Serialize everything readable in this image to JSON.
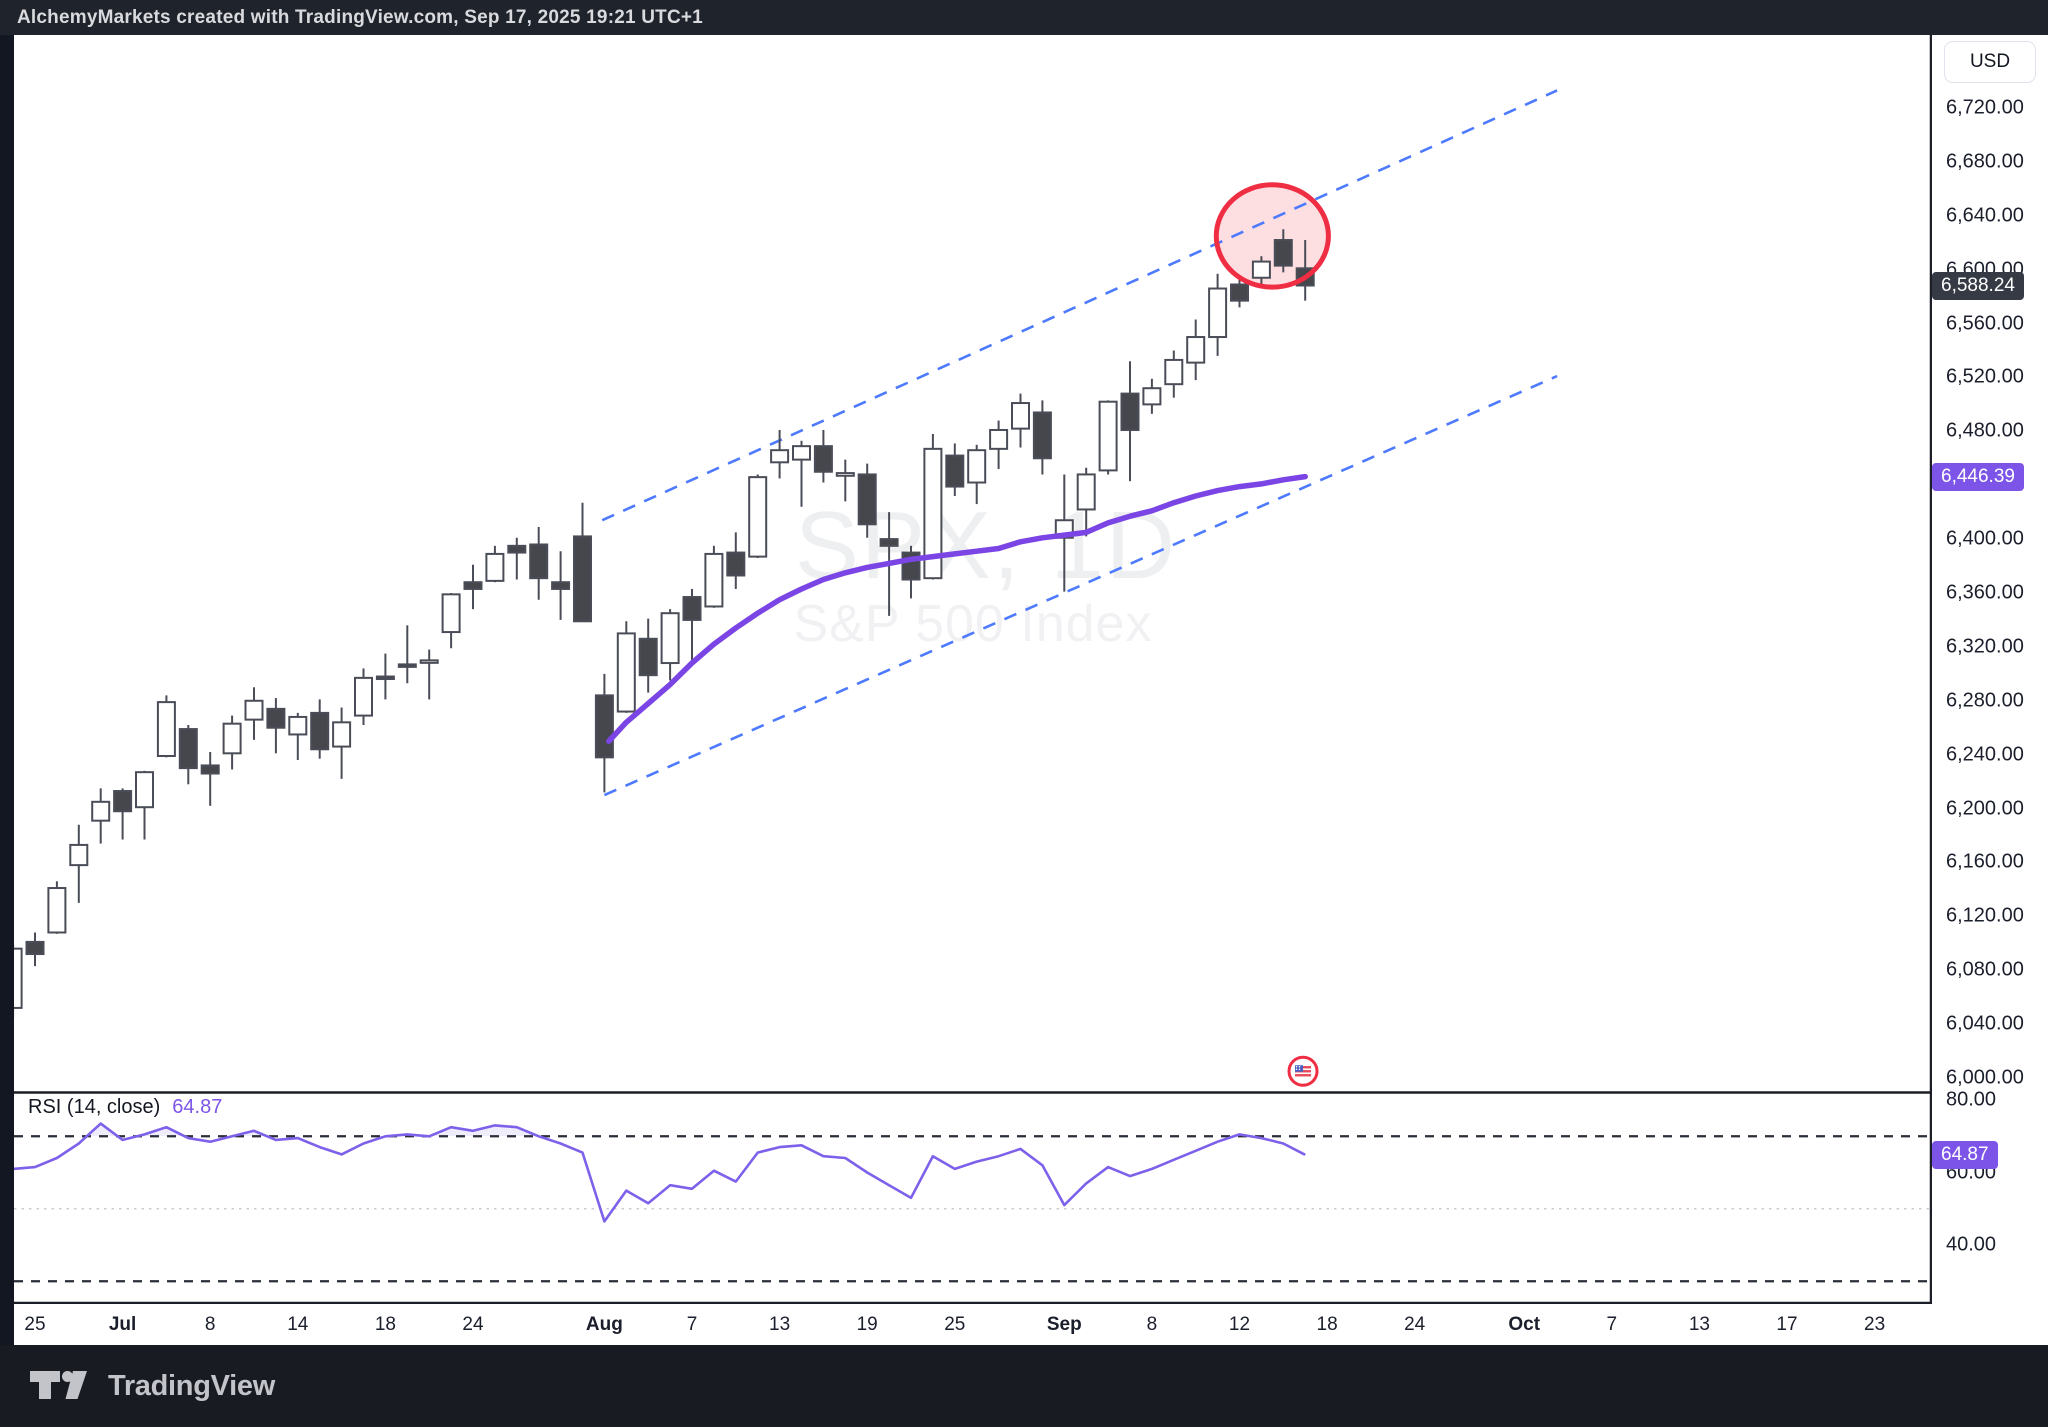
{
  "titlebar": {
    "text": "AlchemyMarkets created with TradingView.com, Sep 17, 2025 19:21 UTC+1"
  },
  "footer": {
    "brand": "TradingView"
  },
  "watermark": {
    "line1": "SPX, 1D",
    "line2": "S&P 500 Index"
  },
  "right_axis": {
    "currency": "USD",
    "price_labels": [
      {
        "price": 6720,
        "label": "6,720.00"
      },
      {
        "price": 6680,
        "label": "6,680.00"
      },
      {
        "price": 6640,
        "label": "6,640.00"
      },
      {
        "price": 6600,
        "label": "6,600.00"
      },
      {
        "price": 6560,
        "label": "6,560.00"
      },
      {
        "price": 6520,
        "label": "6,520.00"
      },
      {
        "price": 6480,
        "label": "6,480.00"
      },
      {
        "price": 6400,
        "label": "6,400.00"
      },
      {
        "price": 6360,
        "label": "6,360.00"
      },
      {
        "price": 6320,
        "label": "6,320.00"
      },
      {
        "price": 6280,
        "label": "6,280.00"
      },
      {
        "price": 6240,
        "label": "6,240.00"
      },
      {
        "price": 6200,
        "label": "6,200.00"
      },
      {
        "price": 6160,
        "label": "6,160.00"
      },
      {
        "price": 6120,
        "label": "6,120.00"
      },
      {
        "price": 6080,
        "label": "6,080.00"
      },
      {
        "price": 6040,
        "label": "6,040.00"
      },
      {
        "price": 6000,
        "label": "6,000.00"
      }
    ],
    "last_price_badge": {
      "label": "6,588.24",
      "price": 6588.24,
      "bg": "#363a45"
    },
    "ma_badge": {
      "label": "6,446.39",
      "price": 6446.39,
      "bg": "#7c55e8"
    },
    "rsi_badge": {
      "label": "64.87",
      "value": 64.87,
      "bg": "#7c55e8"
    },
    "rsi_labels": [
      {
        "value": 80,
        "label": "80.00"
      },
      {
        "value": 60,
        "label": "60.00"
      },
      {
        "value": 40,
        "label": "40.00"
      }
    ]
  },
  "rsi_panel": {
    "name": "RSI",
    "params": "(14, close)",
    "value_text": "64.87",
    "overbought": 70,
    "midline": 50,
    "oversold": 30
  },
  "time_axis": {
    "labels": [
      {
        "text": "25",
        "idx": 0,
        "bold": false
      },
      {
        "text": "Jul",
        "idx": 4,
        "bold": true
      },
      {
        "text": "8",
        "idx": 8,
        "bold": false
      },
      {
        "text": "14",
        "idx": 12,
        "bold": false
      },
      {
        "text": "18",
        "idx": 16,
        "bold": false
      },
      {
        "text": "24",
        "idx": 20,
        "bold": false
      },
      {
        "text": "Aug",
        "idx": 26,
        "bold": true
      },
      {
        "text": "7",
        "idx": 30,
        "bold": false
      },
      {
        "text": "13",
        "idx": 34,
        "bold": false
      },
      {
        "text": "19",
        "idx": 38,
        "bold": false
      },
      {
        "text": "25",
        "idx": 42,
        "bold": false
      },
      {
        "text": "Sep",
        "idx": 47,
        "bold": true
      },
      {
        "text": "8",
        "idx": 51,
        "bold": false
      },
      {
        "text": "12",
        "idx": 55,
        "bold": false
      },
      {
        "text": "18",
        "idx": 59,
        "bold": false
      },
      {
        "text": "24",
        "idx": 63,
        "bold": false
      },
      {
        "text": "Oct",
        "idx": 68,
        "bold": true
      },
      {
        "text": "7",
        "idx": 72,
        "bold": false
      },
      {
        "text": "13",
        "idx": 76,
        "bold": false
      },
      {
        "text": "17",
        "idx": 80,
        "bold": false
      },
      {
        "text": "23",
        "idx": 84,
        "bold": false
      }
    ]
  },
  "chart_data": {
    "type": "candlestick",
    "symbol": "SPX",
    "interval": "1D",
    "index_name": "S&P 500 Index",
    "last_close": 6588.24,
    "ma_value": 6446.39,
    "rsi_value": 64.87,
    "price_axis_range": [
      5990,
      6770
    ],
    "dates": [
      "Jun 24",
      "Jun 25",
      "Jun 26",
      "Jun 27",
      "Jun 30",
      "Jul 1",
      "Jul 2",
      "Jul 3",
      "Jul 7",
      "Jul 8",
      "Jul 9",
      "Jul 10",
      "Jul 11",
      "Jul 14",
      "Jul 15",
      "Jul 16",
      "Jul 17",
      "Jul 18",
      "Jul 21",
      "Jul 22",
      "Jul 23",
      "Jul 24",
      "Jul 25",
      "Jul 28",
      "Jul 29",
      "Jul 30",
      "Jul 31",
      "Aug 1",
      "Aug 4",
      "Aug 5",
      "Aug 6",
      "Aug 7",
      "Aug 8",
      "Aug 11",
      "Aug 12",
      "Aug 13",
      "Aug 14",
      "Aug 15",
      "Aug 18",
      "Aug 19",
      "Aug 20",
      "Aug 21",
      "Aug 22",
      "Aug 25",
      "Aug 26",
      "Aug 27",
      "Aug 28",
      "Aug 29",
      "Sep 2",
      "Sep 3",
      "Sep 4",
      "Sep 5",
      "Sep 8",
      "Sep 9",
      "Sep 10",
      "Sep 11",
      "Sep 12",
      "Sep 15",
      "Sep 16",
      "Sep 17"
    ],
    "ohlc": [
      [
        6052,
        6099,
        6045,
        6096
      ],
      [
        6101,
        6108,
        6083,
        6092
      ],
      [
        6108,
        6146,
        6107,
        6141
      ],
      [
        6158,
        6188,
        6130,
        6173
      ],
      [
        6191,
        6215,
        6174,
        6205
      ],
      [
        6213,
        6215,
        6177,
        6198
      ],
      [
        6201,
        6228,
        6177,
        6227
      ],
      [
        6239,
        6284,
        6238,
        6279
      ],
      [
        6259,
        6262,
        6218,
        6230
      ],
      [
        6232,
        6242,
        6202,
        6226
      ],
      [
        6241,
        6269,
        6229,
        6263
      ],
      [
        6266,
        6290,
        6251,
        6280
      ],
      [
        6274,
        6282,
        6241,
        6260
      ],
      [
        6255,
        6271,
        6236,
        6268
      ],
      [
        6271,
        6281,
        6237,
        6244
      ],
      [
        6246,
        6275,
        6222,
        6264
      ],
      [
        6269,
        6304,
        6262,
        6297
      ],
      [
        6298,
        6315,
        6281,
        6297
      ],
      [
        6307,
        6336,
        6293,
        6306
      ],
      [
        6310,
        6318,
        6281,
        6310
      ],
      [
        6331,
        6360,
        6319,
        6359
      ],
      [
        6368,
        6381,
        6348,
        6363
      ],
      [
        6369,
        6395,
        6368,
        6389
      ],
      [
        6395,
        6401,
        6370,
        6390
      ],
      [
        6396,
        6409,
        6355,
        6371
      ],
      [
        6368,
        6391,
        6340,
        6363
      ],
      [
        6402,
        6427,
        6343,
        6339
      ],
      [
        6284,
        6300,
        6212,
        6238
      ],
      [
        6272,
        6339,
        6271,
        6330
      ],
      [
        6326,
        6341,
        6286,
        6299
      ],
      [
        6308,
        6348,
        6295,
        6345
      ],
      [
        6357,
        6363,
        6306,
        6340
      ],
      [
        6350,
        6395,
        6349,
        6389
      ],
      [
        6390,
        6405,
        6363,
        6373
      ],
      [
        6387,
        6448,
        6386,
        6446
      ],
      [
        6457,
        6481,
        6445,
        6466
      ],
      [
        6459,
        6473,
        6424,
        6469
      ],
      [
        6469,
        6481,
        6442,
        6450
      ],
      [
        6447,
        6459,
        6428,
        6449
      ],
      [
        6448,
        6456,
        6401,
        6411
      ],
      [
        6400,
        6420,
        6343,
        6395
      ],
      [
        6390,
        6395,
        6356,
        6370
      ],
      [
        6371,
        6478,
        6370,
        6467
      ],
      [
        6462,
        6471,
        6432,
        6439
      ],
      [
        6442,
        6470,
        6426,
        6466
      ],
      [
        6467,
        6488,
        6452,
        6481
      ],
      [
        6482,
        6508,
        6468,
        6501
      ],
      [
        6494,
        6503,
        6448,
        6460
      ],
      [
        6401,
        6448,
        6361,
        6414
      ],
      [
        6422,
        6453,
        6402,
        6448
      ],
      [
        6451,
        6503,
        6448,
        6502
      ],
      [
        6508,
        6532,
        6443,
        6481
      ],
      [
        6500,
        6519,
        6493,
        6512
      ],
      [
        6515,
        6540,
        6505,
        6533
      ],
      [
        6531,
        6563,
        6518,
        6550
      ],
      [
        6550,
        6597,
        6536,
        6586
      ],
      [
        6589,
        6596,
        6572,
        6577
      ],
      [
        6594,
        6610,
        6588,
        6606
      ],
      [
        6622,
        6630,
        6598,
        6603
      ],
      [
        6601,
        6622,
        6577,
        6588.24
      ]
    ],
    "rsi_series": [
      61,
      61.5,
      64,
      68,
      73.5,
      69,
      70.5,
      72.5,
      69.5,
      68.5,
      70,
      71.5,
      69,
      69.5,
      67,
      65,
      68,
      70,
      70.5,
      70,
      72.5,
      71.5,
      73,
      72.5,
      70,
      68,
      65.5,
      46.5,
      55,
      51.5,
      56.5,
      55.5,
      60.5,
      57.5,
      65.5,
      67,
      67.5,
      64.5,
      64,
      60,
      56.5,
      53,
      64.5,
      61,
      63,
      64.5,
      66.5,
      62,
      51,
      57,
      61.5,
      59,
      61,
      63.5,
      66,
      68.5,
      70.5,
      69.5,
      68,
      64.87
    ],
    "ma_series": [
      [
        26.2,
        6250
      ],
      [
        27,
        6264
      ],
      [
        28,
        6278
      ],
      [
        29,
        6292
      ],
      [
        30,
        6308
      ],
      [
        31,
        6322
      ],
      [
        32,
        6334
      ],
      [
        33,
        6345
      ],
      [
        34,
        6355
      ],
      [
        35,
        6363
      ],
      [
        36,
        6370
      ],
      [
        37,
        6375
      ],
      [
        38,
        6379
      ],
      [
        39,
        6382
      ],
      [
        40,
        6385
      ],
      [
        41,
        6387
      ],
      [
        42,
        6389
      ],
      [
        43,
        6391
      ],
      [
        44,
        6393
      ],
      [
        45,
        6398
      ],
      [
        46,
        6401
      ],
      [
        47,
        6403
      ],
      [
        48,
        6405
      ],
      [
        49,
        6412
      ],
      [
        50,
        6417
      ],
      [
        51,
        6421
      ],
      [
        52,
        6427
      ],
      [
        53,
        6432
      ],
      [
        54,
        6436
      ],
      [
        55,
        6439
      ],
      [
        56,
        6441
      ],
      [
        57,
        6444
      ],
      [
        58,
        6446.39
      ]
    ],
    "channel": {
      "upper": {
        "from": [
          25.9,
          6414
        ],
        "to": [
          69.5,
          6733
        ]
      },
      "lower": {
        "from": [
          26.0,
          6210
        ],
        "to": [
          69.5,
          6521
        ]
      }
    },
    "annotations": {
      "highlight_circle": {
        "cx_idx": 56.5,
        "cy_price": 6625,
        "rx_days": 2.56,
        "ry_points": 38
      },
      "flag_marker": {
        "idx": 57.9,
        "price": 6005
      }
    },
    "colors": {
      "candle_up": "#ffffff",
      "candle_down": "#45474c",
      "candle_border": "#4a4d57",
      "ma_line": "#7b45e6",
      "rsi_line": "#7e61ea",
      "channel_blue": "#4d7afe",
      "circle_red": "#ef2e43",
      "badge_dark": "#363a45",
      "accent_purple": "#7c55e8"
    }
  }
}
